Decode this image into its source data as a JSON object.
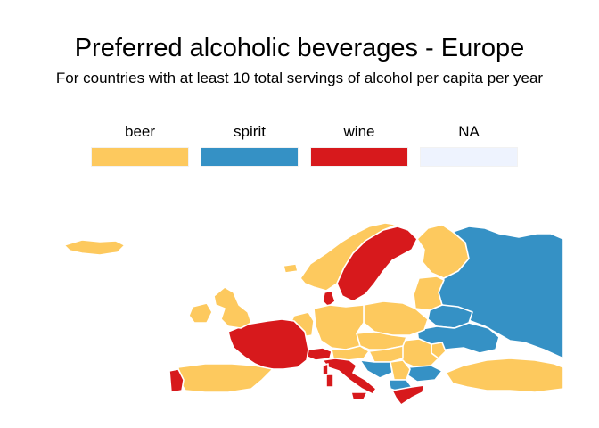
{
  "title": "Preferred alcoholic beverages - Europe",
  "subtitle": "For countries with at least 10 total servings of alcohol per capita per year",
  "legend": [
    {
      "label": "beer",
      "color": "#FDC95E"
    },
    {
      "label": "spirit",
      "color": "#3591C5"
    },
    {
      "label": "wine",
      "color": "#D7191C"
    },
    {
      "label": "NA",
      "color": "#EEF3FE"
    }
  ],
  "colors": {
    "beer": "#FDC95E",
    "spirit": "#3591C5",
    "wine": "#D7191C",
    "na": "#EEF3FE"
  }
}
